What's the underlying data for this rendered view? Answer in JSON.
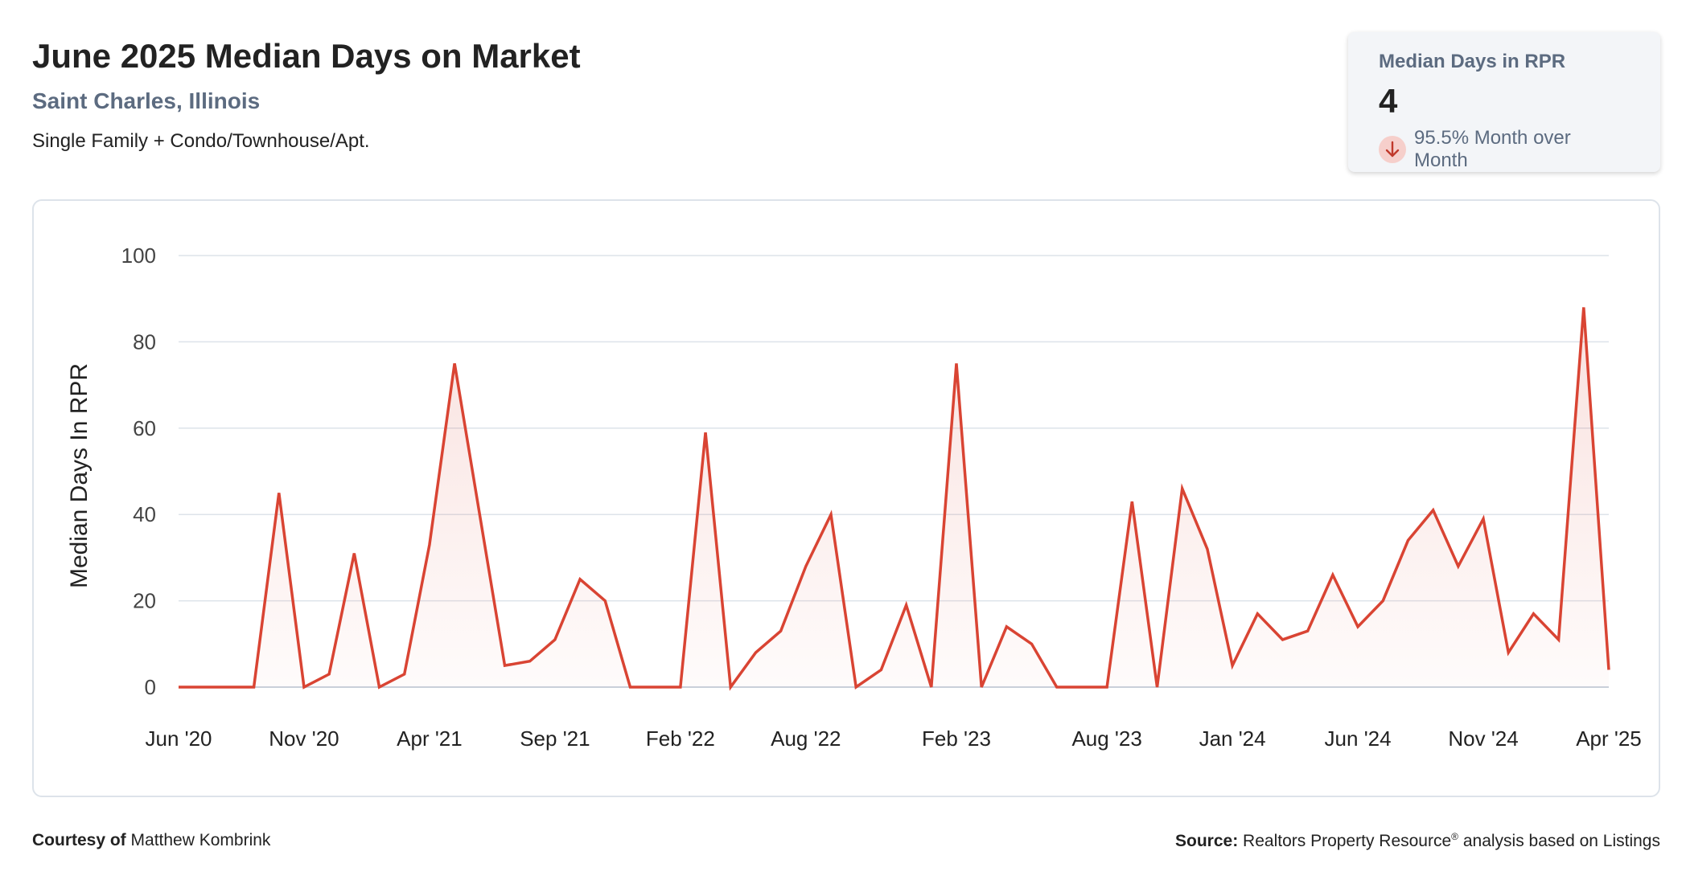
{
  "header": {
    "title": "June 2025 Median Days on Market",
    "location": "Saint Charles, Illinois",
    "property_types": "Single Family + Condo/Townhouse/Apt."
  },
  "stat_card": {
    "label": "Median Days in RPR",
    "value": "4",
    "change_text": "95.5% Month over Month",
    "change_icon": "arrow-down-icon"
  },
  "footer": {
    "courtesy_label": "Courtesy of",
    "courtesy_name": "Matthew Kombrink",
    "source_label": "Source:",
    "source_text_a": "Realtors Property Resource",
    "source_reg": "®",
    "source_text_b": " analysis based on Listings"
  },
  "colors": {
    "line": "#d94433",
    "fill": "#d94433",
    "grid": "#dde3ea",
    "accent_text": "#5c6b80"
  },
  "chart_data": {
    "type": "area",
    "title": "June 2025 Median Days on Market",
    "ylabel": "Median Days In RPR",
    "xlabel": "",
    "ylim": [
      0,
      100
    ],
    "yticks": [
      0,
      20,
      40,
      60,
      80,
      100
    ],
    "x_tick_labels": [
      "Jun '20",
      "Nov '20",
      "Apr '21",
      "Sep '21",
      "Feb '22",
      "Aug '22",
      "Feb '23",
      "Aug '23",
      "Jan '24",
      "Jun '24",
      "Nov '24",
      "Apr '25"
    ],
    "x_tick_indices": [
      0,
      5,
      10,
      15,
      20,
      25,
      31,
      37,
      42,
      47,
      52,
      57
    ],
    "x_start": "Jun '20",
    "x_end": "Jun '25",
    "grid": true,
    "legend": "none",
    "values": [
      0,
      0,
      0,
      0,
      45,
      0,
      3,
      31,
      0,
      3,
      33,
      75,
      40,
      5,
      6,
      11,
      25,
      20,
      0,
      0,
      0,
      59,
      0,
      8,
      13,
      28,
      40,
      0,
      4,
      19,
      0,
      75,
      0,
      14,
      10,
      0,
      0,
      0,
      43,
      0,
      46,
      32,
      5,
      17,
      11,
      13,
      26,
      14,
      20,
      34,
      41,
      28,
      39,
      8,
      17,
      11,
      88,
      4
    ]
  }
}
